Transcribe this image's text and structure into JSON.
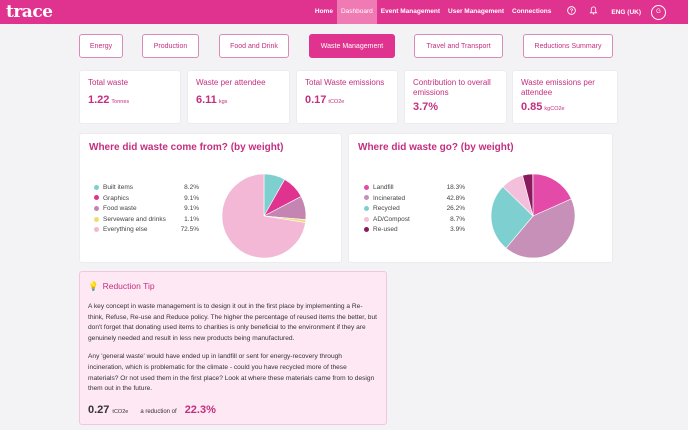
{
  "app": {
    "logo": "trace"
  },
  "nav": {
    "items": [
      {
        "label": "Home",
        "active": false
      },
      {
        "label": "Dashboard",
        "active": true
      },
      {
        "label": "Event Management",
        "active": false
      },
      {
        "label": "User Management",
        "active": false
      },
      {
        "label": "Connections",
        "active": false
      }
    ],
    "help_icon": "?",
    "bell_icon": "🔔",
    "language": "ENG (UK)",
    "avatar_initial": "G"
  },
  "tabs": [
    {
      "label": "Energy",
      "active": false
    },
    {
      "label": "Production",
      "active": false
    },
    {
      "label": "Food and Drink",
      "active": false
    },
    {
      "label": "Waste Management",
      "active": true
    },
    {
      "label": "Travel and Transport",
      "active": false
    },
    {
      "label": "Reductions Summary",
      "active": false
    }
  ],
  "stats": [
    {
      "label": "Total waste",
      "value": "1.22",
      "unit": "Tonnes"
    },
    {
      "label": "Waste per attendee",
      "value": "6.11",
      "unit": "kgs"
    },
    {
      "label": "Total Waste emissions",
      "value": "0.17",
      "unit": "tCO2e"
    },
    {
      "label": "Contribution to overall emissions",
      "value": "3.7%",
      "unit": ""
    },
    {
      "label": "Waste emissions per attendee",
      "value": "0.85",
      "unit": "kgCO2e"
    }
  ],
  "waste_from": {
    "title": "Where did waste come from? (by weight)",
    "items": [
      {
        "label": "Built items",
        "value": "8.2%",
        "color": "#7ecfcf"
      },
      {
        "label": "Graphics",
        "value": "9.1%",
        "color": "#e0338f"
      },
      {
        "label": "Food waste",
        "value": "9.1%",
        "color": "#c585b3"
      },
      {
        "label": "Serveware and drinks",
        "value": "1.1%",
        "color": "#eedd70"
      },
      {
        "label": "Everything else",
        "value": "72.5%",
        "color": "#f2b8d6"
      }
    ]
  },
  "waste_to": {
    "title": "Where did waste go? (by weight)",
    "items": [
      {
        "label": "Landfill",
        "value": "18.3%",
        "color": "#e44ba8"
      },
      {
        "label": "Incinerated",
        "value": "42.8%",
        "color": "#c690b8"
      },
      {
        "label": "Recycled",
        "value": "26.2%",
        "color": "#7ecfcf"
      },
      {
        "label": "AD/Compost",
        "value": "8.7%",
        "color": "#f4bfdb"
      },
      {
        "label": "Re-used",
        "value": "3.9%",
        "color": "#8a1a5e"
      }
    ]
  },
  "tip": {
    "title": "Reduction Tip",
    "bulb_icon": "💡",
    "paragraph1": "A key concept in waste management is to design it out in the first place by implementing a Re-think, Refuse, Re-use and Reduce policy. The higher the percentage of reused items the better, but don't forget that donating used items to charities is only beneficial to the environment if they are genuinely needed and result in less new products being manufactured.",
    "paragraph2": "Any 'general waste' would have ended up in landfill or sent for energy-recovery through incineration, which is problematic for the climate - could you have recycled more of these materials? Or not used them in the first place? Look at where these materials came from to design them out in the future.",
    "saving_value": "0.27",
    "saving_unit": "tCO2e",
    "reduction_text": "a reduction of",
    "reduction_pct": "22.3%"
  }
}
